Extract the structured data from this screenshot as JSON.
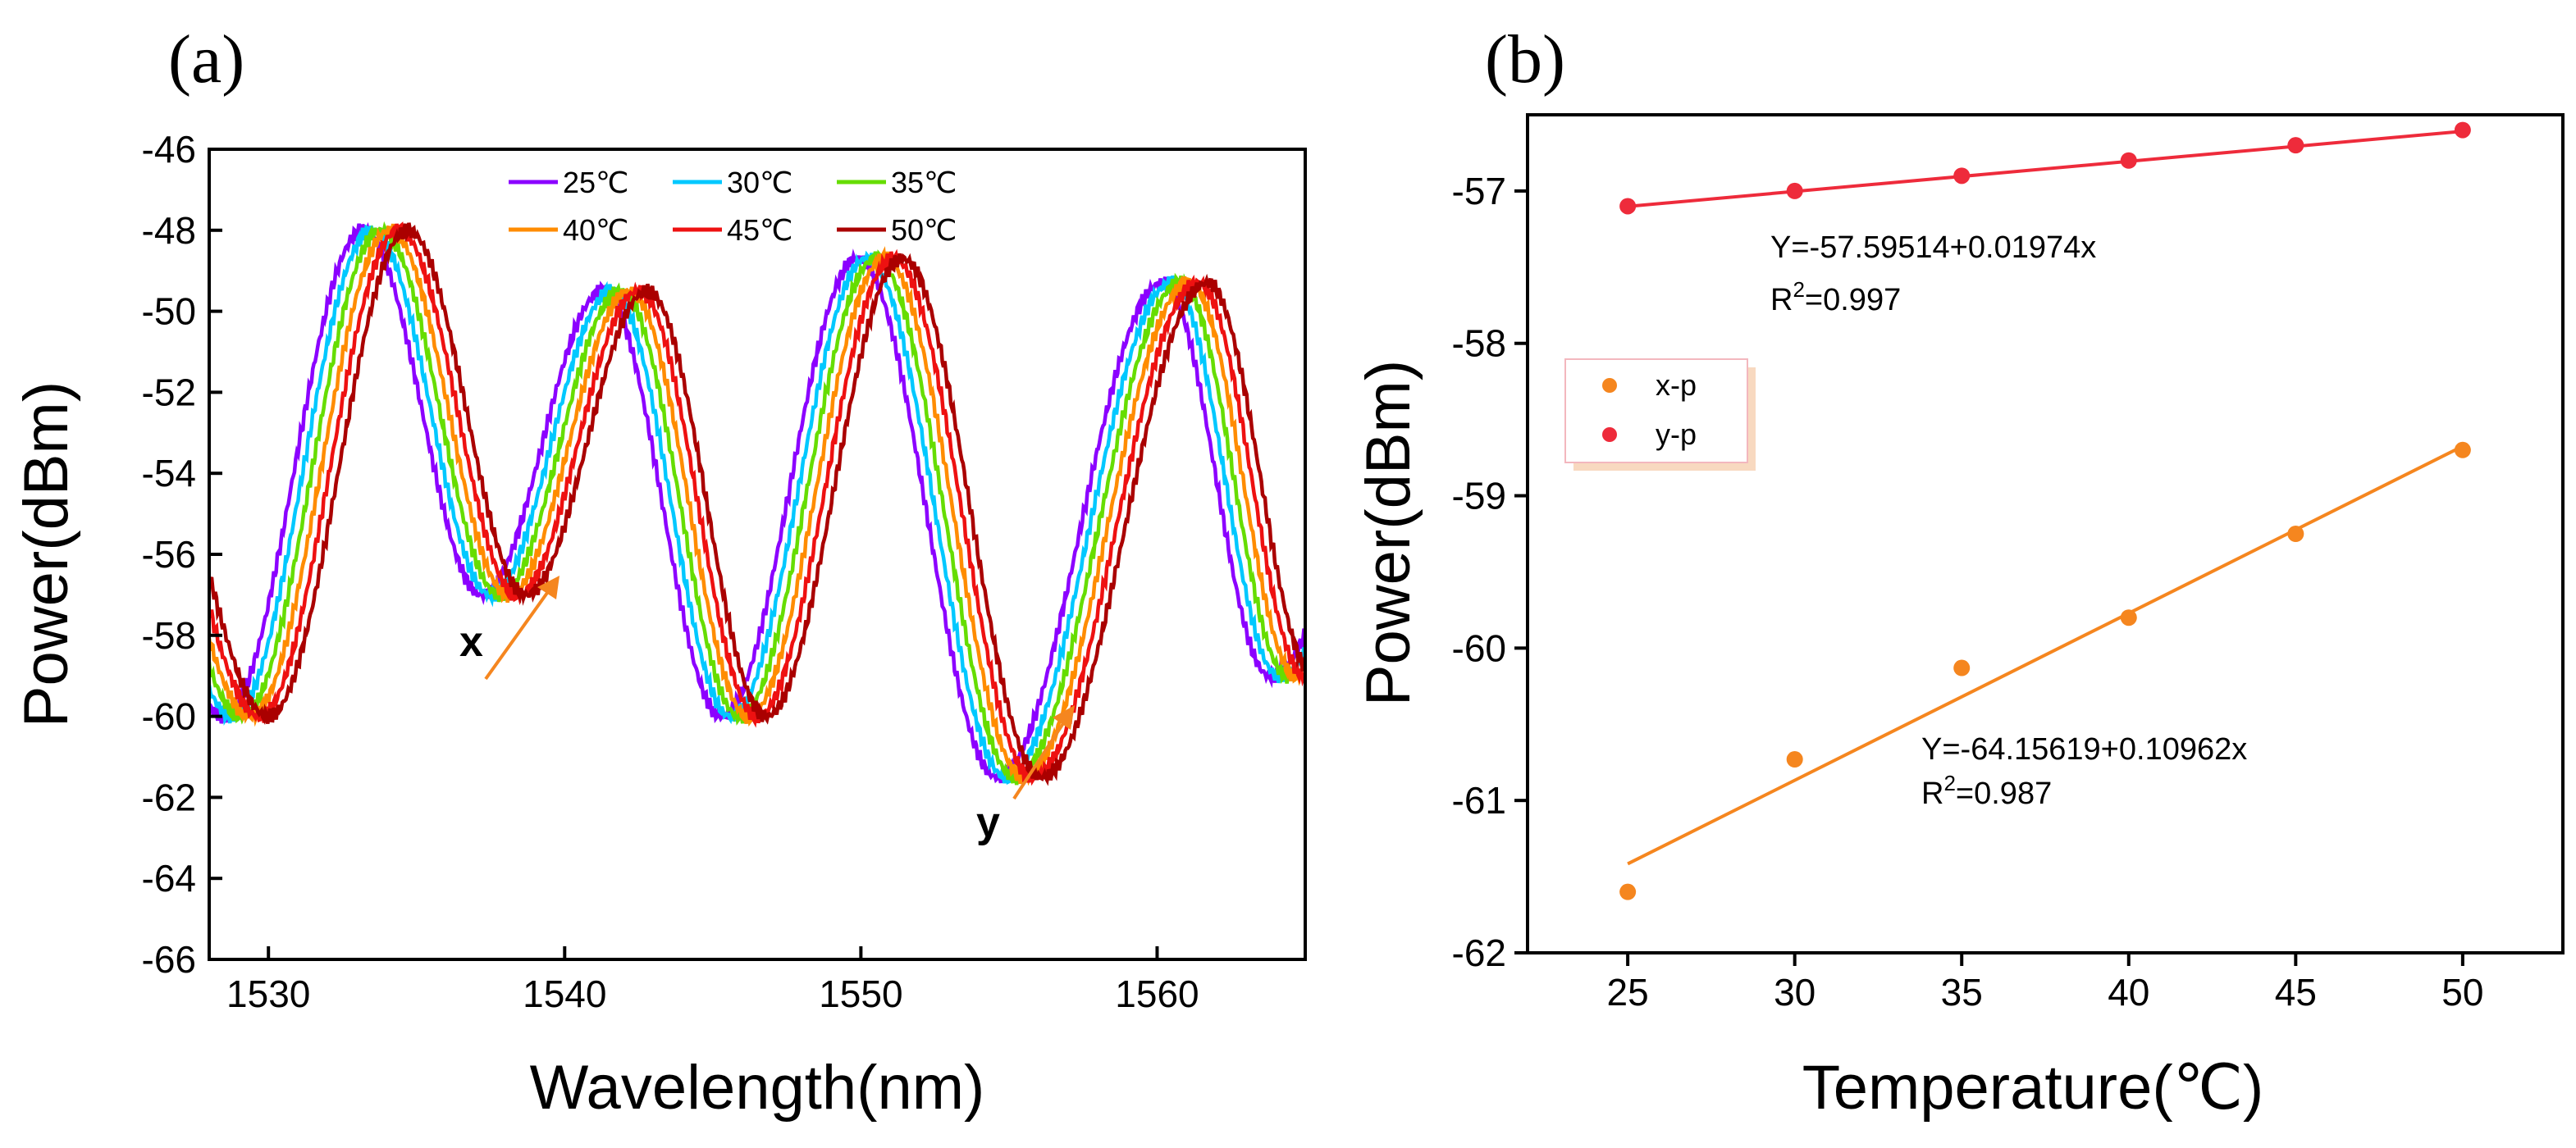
{
  "chart_data": [
    {
      "panel": "(a)",
      "type": "line",
      "xlabel": "Wavelength(nm)",
      "ylabel": "Power(dBm)",
      "xlim": [
        1528,
        1565
      ],
      "ylim": [
        -66,
        -46
      ],
      "xticks": [
        1530,
        1540,
        1550,
        1560
      ],
      "yticks": [
        -66,
        -64,
        -62,
        -60,
        -58,
        -56,
        -54,
        -52,
        -50,
        -48,
        -46
      ],
      "series": [
        {
          "name": "25℃",
          "color": "#8B00FF",
          "shift": 0.0
        },
        {
          "name": "30℃",
          "color": "#00C8FF",
          "shift": 0.3
        },
        {
          "name": "35℃",
          "color": "#66DD00",
          "shift": 0.6
        },
        {
          "name": "40℃",
          "color": "#FF8C00",
          "shift": 0.9
        },
        {
          "name": "45℃",
          "color": "#EE1111",
          "shift": 1.2
        },
        {
          "name": "50℃",
          "color": "#AA0000",
          "shift": 1.5
        }
      ],
      "dips": [
        {
          "center": 1528.5,
          "depth": -60.0
        },
        {
          "center": 1537.2,
          "depth": -57.0
        },
        {
          "center": 1545.3,
          "depth": -60.0
        },
        {
          "center": 1554.6,
          "depth": -61.5
        },
        {
          "center": 1563.8,
          "depth": -59.0
        }
      ],
      "peaks": [
        {
          "center": 1533.2,
          "height": -48.0
        },
        {
          "center": 1541.3,
          "height": -49.5
        },
        {
          "center": 1549.9,
          "height": -48.7
        },
        {
          "center": 1560.2,
          "height": -49.3
        }
      ],
      "annotations": [
        {
          "text": "x",
          "x": 1537.2,
          "y": -57.0
        },
        {
          "text": "y",
          "x": 1554.6,
          "y": -61.5
        }
      ]
    },
    {
      "panel": "(b)",
      "type": "scatter",
      "xlabel": "Temperature(℃)",
      "ylabel": "Power(dBm)",
      "xlim": [
        22,
        53
      ],
      "ylim": [
        -62,
        -56.5
      ],
      "xticks": [
        25,
        30,
        35,
        40,
        45,
        50
      ],
      "yticks": [
        -62,
        -61,
        -60,
        -59,
        -58,
        -57
      ],
      "series": [
        {
          "name": "x-p",
          "color": "#F5861F",
          "x": [
            25,
            30,
            35,
            40,
            45,
            50
          ],
          "y": [
            -61.6,
            -60.73,
            -60.13,
            -59.8,
            -59.25,
            -58.7
          ],
          "fit": {
            "intercept": -64.15619,
            "slope": 0.10962
          },
          "equation": "Y=-64.15619+0.10962x",
          "r2_prefix": "R",
          "r2_sup": "2",
          "r2_value": "=0.987"
        },
        {
          "name": "y-p",
          "color": "#EE2B3B",
          "x": [
            25,
            30,
            35,
            40,
            45,
            50
          ],
          "y": [
            -57.1,
            -57.0,
            -56.9,
            -56.8,
            -56.7,
            -56.6
          ],
          "fit": {
            "intercept": -57.59514,
            "slope": 0.01974
          },
          "equation": "Y=-57.59514+0.01974x",
          "r2_prefix": "R",
          "r2_sup": "2",
          "r2_value": "=0.997"
        }
      ]
    }
  ]
}
